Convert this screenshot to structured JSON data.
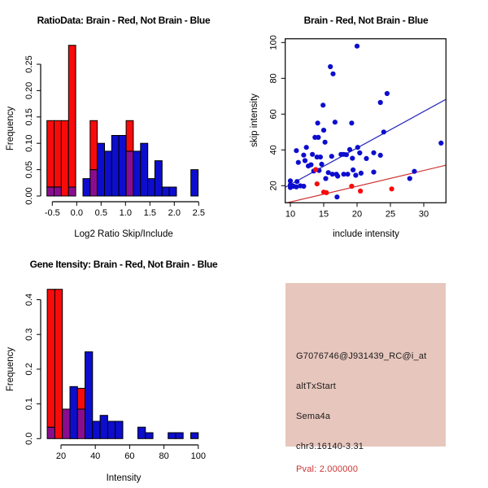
{
  "window_title": "",
  "colors": {
    "red": "#F80B0B",
    "blue": "#0D0DCE",
    "purple": "#8A0D8F",
    "scatter_blue_line": "#2222BB",
    "scatter_red_line": "#CE3333",
    "box_pink": "#E7C6BD",
    "pval_red": "#CC3333",
    "axis": "#000000",
    "background": "#FFFFFF"
  },
  "info_box": {
    "probe_id": "G7076746@J931439_RC@i_at",
    "event_type": "altTxStart",
    "gene": "Sema4a",
    "location": "chr3.16140-3.31",
    "pval": "Pval: 2.000000"
  },
  "chart_data": [
    {
      "panel": "top_left",
      "type": "bar",
      "subtype": "overlaid-histogram",
      "title": "RatioData: Brain - Red, Not Brain - Blue",
      "xlabel": "Log2 Ratio Skip/Include",
      "ylabel": "Frequency",
      "legend": {
        "Brain": "red",
        "Not Brain": "blue",
        "overlap": "purple"
      },
      "xticks": [
        -0.5,
        0.0,
        0.5,
        1.0,
        1.5,
        2.0,
        2.5
      ],
      "xtick_labels": [
        "-0.5",
        "0.0",
        "0.5",
        "1.0",
        "1.5",
        "2.0",
        "2.5"
      ],
      "yticks": [
        0.0,
        0.05,
        0.1,
        0.15,
        0.2,
        0.25
      ],
      "ytick_labels": [
        "0.00",
        "0.05",
        "0.10",
        "0.15",
        "0.20",
        "0.25"
      ],
      "xlim_axis": [
        -0.5,
        2.5
      ],
      "ylim_axis": [
        0,
        0.25
      ],
      "bars": [
        {
          "x0": -0.61,
          "x1": -0.4625,
          "seg": [
            {
              "a": 0,
              "b": 0.017,
              "c": "purple"
            },
            {
              "a": 0.017,
              "b": 0.143,
              "c": "red"
            }
          ]
        },
        {
          "x0": -0.4625,
          "x1": -0.315,
          "seg": [
            {
              "a": 0,
              "b": 0.017,
              "c": "purple"
            },
            {
              "a": 0.017,
              "b": 0.143,
              "c": "red"
            }
          ]
        },
        {
          "x0": -0.315,
          "x1": -0.1675,
          "seg": [
            {
              "a": 0,
              "b": 0.143,
              "c": "red"
            }
          ]
        },
        {
          "x0": -0.1675,
          "x1": -0.02,
          "seg": [
            {
              "a": 0,
              "b": 0.017,
              "c": "purple"
            },
            {
              "a": 0.017,
              "b": 0.286,
              "c": "red"
            }
          ]
        },
        {
          "x0": 0.1275,
          "x1": 0.275,
          "seg": [
            {
              "a": 0,
              "b": 0.033,
              "c": "blue"
            }
          ]
        },
        {
          "x0": 0.275,
          "x1": 0.4225,
          "seg": [
            {
              "a": 0,
              "b": 0.05,
              "c": "purple"
            },
            {
              "a": 0.05,
              "b": 0.143,
              "c": "red"
            }
          ]
        },
        {
          "x0": 0.4225,
          "x1": 0.57,
          "seg": [
            {
              "a": 0,
              "b": 0.1,
              "c": "blue"
            }
          ]
        },
        {
          "x0": 0.57,
          "x1": 0.7175,
          "seg": [
            {
              "a": 0,
              "b": 0.085,
              "c": "blue"
            }
          ]
        },
        {
          "x0": 0.7175,
          "x1": 0.865,
          "seg": [
            {
              "a": 0,
              "b": 0.115,
              "c": "blue"
            }
          ]
        },
        {
          "x0": 0.865,
          "x1": 1.0125,
          "seg": [
            {
              "a": 0,
              "b": 0.115,
              "c": "blue"
            }
          ]
        },
        {
          "x0": 1.0125,
          "x1": 1.16,
          "seg": [
            {
              "a": 0,
              "b": 0.085,
              "c": "purple"
            },
            {
              "a": 0.085,
              "b": 0.143,
              "c": "red"
            }
          ]
        },
        {
          "x0": 1.16,
          "x1": 1.3075,
          "seg": [
            {
              "a": 0,
              "b": 0.085,
              "c": "blue"
            }
          ]
        },
        {
          "x0": 1.3075,
          "x1": 1.455,
          "seg": [
            {
              "a": 0,
              "b": 0.1,
              "c": "blue"
            }
          ]
        },
        {
          "x0": 1.455,
          "x1": 1.6025,
          "seg": [
            {
              "a": 0,
              "b": 0.033,
              "c": "blue"
            }
          ]
        },
        {
          "x0": 1.6025,
          "x1": 1.75,
          "seg": [
            {
              "a": 0,
              "b": 0.067,
              "c": "blue"
            }
          ]
        },
        {
          "x0": 1.75,
          "x1": 1.8975,
          "seg": [
            {
              "a": 0,
              "b": 0.017,
              "c": "blue"
            }
          ]
        },
        {
          "x0": 1.8975,
          "x1": 2.045,
          "seg": [
            {
              "a": 0,
              "b": 0.017,
              "c": "blue"
            }
          ]
        },
        {
          "x0": 2.34,
          "x1": 2.4875,
          "seg": [
            {
              "a": 0,
              "b": 0.05,
              "c": "blue"
            }
          ]
        }
      ]
    },
    {
      "panel": "top_right",
      "type": "scatter",
      "title": "Brain - Red, Not Brain - Blue",
      "xlabel": "include intensity",
      "ylabel": "skip intensity",
      "xticks": [
        10,
        15,
        20,
        25,
        30
      ],
      "xtick_labels": [
        "10",
        "15",
        "20",
        "25",
        "30"
      ],
      "yticks": [
        20,
        40,
        60,
        80,
        100
      ],
      "ytick_labels": [
        "20",
        "40",
        "60",
        "80",
        "100"
      ],
      "xlim": [
        9.2,
        33.3
      ],
      "ylim": [
        10.2,
        101.8
      ],
      "series": [
        {
          "name": "Not Brain",
          "color_key": "blue",
          "points": [
            [
              20,
              98
            ],
            [
              16,
              86.5
            ],
            [
              16.4,
              82.5
            ],
            [
              14.9,
              65
            ],
            [
              24.5,
              71.5
            ],
            [
              23.5,
              66.5
            ],
            [
              14.1,
              55
            ],
            [
              16.7,
              55.5
            ],
            [
              19.2,
              55
            ],
            [
              15,
              51
            ],
            [
              24,
              50
            ],
            [
              13.7,
              47
            ],
            [
              14.2,
              47
            ],
            [
              15.2,
              44.3
            ],
            [
              32.6,
              43.8
            ],
            [
              12.4,
              41.4
            ],
            [
              20.1,
              41.4
            ],
            [
              18.9,
              40.2
            ],
            [
              10.9,
              39.6
            ],
            [
              20.4,
              38.3
            ],
            [
              12,
              37.1
            ],
            [
              13.3,
              37.5
            ],
            [
              14,
              36
            ],
            [
              14.5,
              36
            ],
            [
              16.2,
              36.4
            ],
            [
              17.6,
              37.5
            ],
            [
              18,
              37.5
            ],
            [
              18.4,
              37.3
            ],
            [
              19.3,
              35.3
            ],
            [
              21.4,
              35.2
            ],
            [
              22.5,
              38.4
            ],
            [
              23.5,
              37
            ],
            [
              11.2,
              33
            ],
            [
              12.2,
              34
            ],
            [
              12.7,
              31
            ],
            [
              13.1,
              31.7
            ],
            [
              14.7,
              32
            ],
            [
              13.5,
              28.2
            ],
            [
              14.3,
              28.5
            ],
            [
              15.7,
              27.3
            ],
            [
              17.1,
              25.3
            ],
            [
              16.3,
              26.4
            ],
            [
              16.9,
              26.4
            ],
            [
              18,
              26.4
            ],
            [
              18.6,
              26.4
            ],
            [
              19.4,
              28.8
            ],
            [
              19.8,
              25.8
            ],
            [
              20.6,
              27
            ],
            [
              22.5,
              27.6
            ],
            [
              28.6,
              28
            ],
            [
              27.9,
              24
            ],
            [
              10,
              22.7
            ],
            [
              11,
              22.3
            ],
            [
              10,
              20.5
            ],
            [
              10,
              19
            ],
            [
              10.5,
              19.7
            ],
            [
              10.9,
              19.3
            ],
            [
              11.5,
              19.9
            ],
            [
              12,
              19.7
            ],
            [
              15.3,
              24
            ],
            [
              17,
              13.7
            ]
          ]
        },
        {
          "name": "Brain",
          "color_key": "red",
          "points": [
            [
              13.8,
              29
            ],
            [
              14,
              21
            ],
            [
              15,
              16.4
            ],
            [
              15.4,
              16.1
            ],
            [
              19.2,
              19.7
            ],
            [
              20.5,
              17
            ],
            [
              25.2,
              18.2
            ]
          ]
        }
      ],
      "lines": [
        {
          "name": "not-brain-fit",
          "color_key": "scatter_blue_line",
          "p1": [
            9.23,
            19.1
          ],
          "p2": [
            33.3,
            68.2
          ]
        },
        {
          "name": "brain-fit",
          "color_key": "scatter_red_line",
          "p1": [
            9.23,
            10.2
          ],
          "p2": [
            33.3,
            31.4
          ]
        }
      ]
    },
    {
      "panel": "bottom_left",
      "type": "bar",
      "subtype": "overlaid-histogram",
      "title": "Gene Itensity: Brain - Red, Not Brain - Blue",
      "xlabel": "Intensity",
      "ylabel": "Frequency",
      "legend": {
        "Brain": "red",
        "Not Brain": "blue",
        "overlap": "purple"
      },
      "xticks": [
        20,
        40,
        60,
        80,
        100
      ],
      "xtick_labels": [
        "20",
        "40",
        "60",
        "80",
        "100"
      ],
      "yticks": [
        0.0,
        0.1,
        0.2,
        0.3,
        0.4
      ],
      "ytick_labels": [
        "0.0",
        "0.1",
        "0.2",
        "0.3",
        "0.4"
      ],
      "xlim_axis": [
        20,
        100
      ],
      "ylim_axis": [
        0,
        0.4
      ],
      "bars": [
        {
          "x0": 12,
          "x1": 16.4,
          "seg": [
            {
              "a": 0,
              "b": 0.033,
              "c": "purple"
            },
            {
              "a": 0.033,
              "b": 0.43,
              "c": "red"
            }
          ]
        },
        {
          "x0": 16.4,
          "x1": 20.8,
          "seg": [
            {
              "a": 0,
              "b": 0.43,
              "c": "red"
            }
          ]
        },
        {
          "x0": 20.8,
          "x1": 25.2,
          "seg": [
            {
              "a": 0,
              "b": 0.085,
              "c": "purple"
            }
          ]
        },
        {
          "x0": 25.2,
          "x1": 29.6,
          "seg": [
            {
              "a": 0,
              "b": 0.15,
              "c": "blue"
            }
          ]
        },
        {
          "x0": 29.6,
          "x1": 34,
          "seg": [
            {
              "a": 0,
              "b": 0.085,
              "c": "purple"
            },
            {
              "a": 0.085,
              "b": 0.145,
              "c": "red"
            }
          ]
        },
        {
          "x0": 34,
          "x1": 38.4,
          "seg": [
            {
              "a": 0,
              "b": 0.25,
              "c": "blue"
            }
          ]
        },
        {
          "x0": 38.4,
          "x1": 42.8,
          "seg": [
            {
              "a": 0,
              "b": 0.05,
              "c": "blue"
            }
          ]
        },
        {
          "x0": 42.8,
          "x1": 47.2,
          "seg": [
            {
              "a": 0,
              "b": 0.067,
              "c": "blue"
            }
          ]
        },
        {
          "x0": 47.2,
          "x1": 51.6,
          "seg": [
            {
              "a": 0,
              "b": 0.05,
              "c": "blue"
            }
          ]
        },
        {
          "x0": 51.6,
          "x1": 56,
          "seg": [
            {
              "a": 0,
              "b": 0.05,
              "c": "blue"
            }
          ]
        },
        {
          "x0": 64.8,
          "x1": 69.2,
          "seg": [
            {
              "a": 0,
              "b": 0.033,
              "c": "blue"
            }
          ]
        },
        {
          "x0": 69.2,
          "x1": 73.6,
          "seg": [
            {
              "a": 0,
              "b": 0.017,
              "c": "blue"
            }
          ]
        },
        {
          "x0": 82.4,
          "x1": 86.8,
          "seg": [
            {
              "a": 0,
              "b": 0.017,
              "c": "blue"
            }
          ]
        },
        {
          "x0": 86.8,
          "x1": 91.2,
          "seg": [
            {
              "a": 0,
              "b": 0.017,
              "c": "blue"
            }
          ]
        },
        {
          "x0": 95.6,
          "x1": 100,
          "seg": [
            {
              "a": 0,
              "b": 0.017,
              "c": "blue"
            }
          ]
        }
      ]
    },
    {
      "panel": "bottom_right",
      "type": "table",
      "subtype": "info-box",
      "rows": [
        "G7076746@J931439_RC@i_at",
        "altTxStart",
        "Sema4a",
        "chr3.16140-3.31",
        "Pval: 2.000000"
      ]
    }
  ]
}
